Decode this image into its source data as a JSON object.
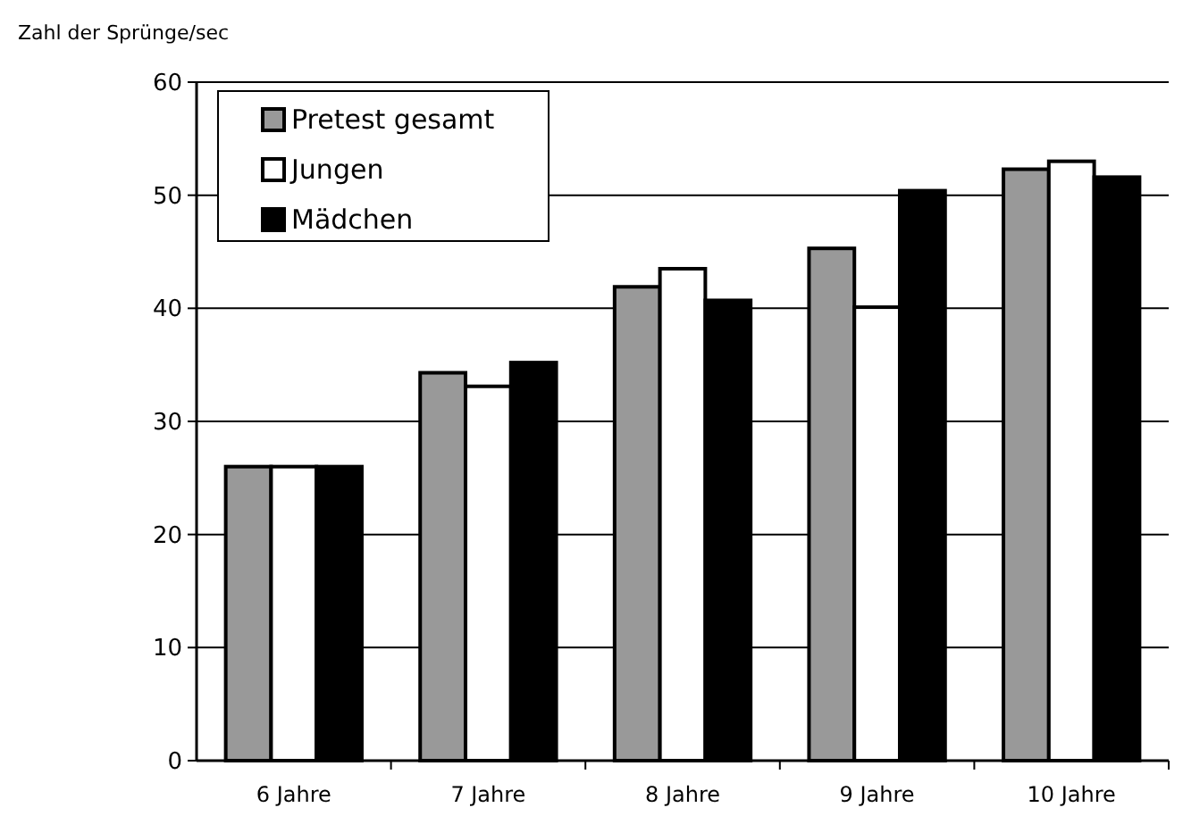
{
  "chart_data": {
    "type": "bar",
    "ylabel": "Zahl der Sprünge/sec",
    "categories": [
      "6 Jahre",
      "7 Jahre",
      "8 Jahre",
      "9 Jahre",
      "10 Jahre"
    ],
    "series": [
      {
        "name": "Pretest gesamt",
        "color": "#999999",
        "values": [
          26,
          34.3,
          41.9,
          45.3,
          52.3
        ]
      },
      {
        "name": "Jungen",
        "color": "#ffffff",
        "values": [
          26,
          33.1,
          43.5,
          40.1,
          53.0
        ]
      },
      {
        "name": "Mädchen",
        "color": "#000000",
        "values": [
          26,
          35.2,
          40.7,
          50.4,
          51.6
        ]
      }
    ],
    "ylim": [
      0,
      60
    ],
    "yticks": [
      0,
      10,
      20,
      30,
      40,
      50,
      60
    ],
    "grid": "y",
    "legend": "top left"
  }
}
